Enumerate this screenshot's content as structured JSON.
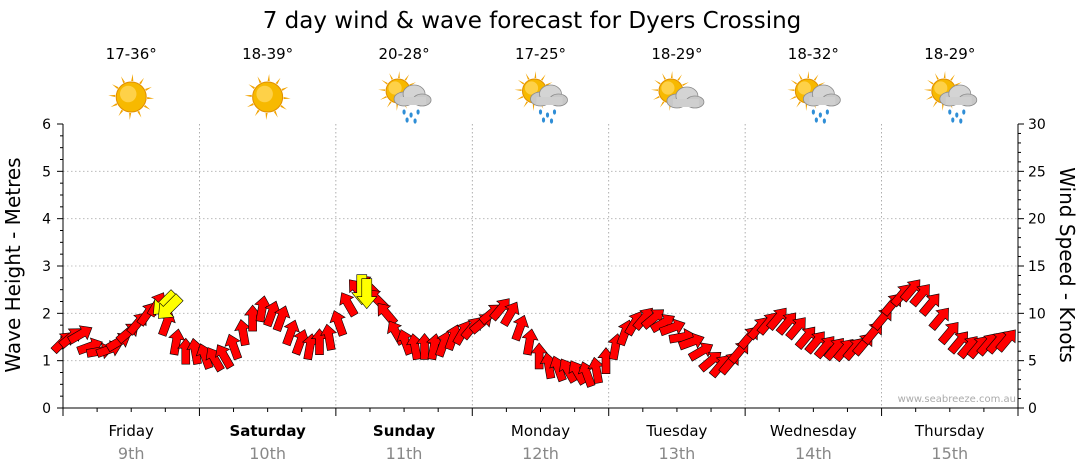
{
  "chart_data": {
    "type": "line",
    "title": "7 day wind & wave forecast for Dyers Crossing",
    "ylabel_left": "Wave Height - Metres",
    "ylabel_right": "Wind Speed - Knots",
    "ylim_left": [
      0,
      6
    ],
    "ylim_right": [
      0,
      30
    ],
    "yticks_left": [
      "0",
      "1",
      "2",
      "3",
      "4",
      "5",
      "6"
    ],
    "yticks_right": [
      "0",
      "5",
      "10",
      "15",
      "20",
      "25",
      "30"
    ],
    "grid": true,
    "credit": "www.seabreeze.com.au",
    "days": [
      {
        "name": "Friday",
        "date": "9th",
        "temp": "17-36°",
        "icon": "sunny-icon",
        "bold": false
      },
      {
        "name": "Saturday",
        "date": "10th",
        "temp": "18-39°",
        "icon": "sunny-icon",
        "bold": true
      },
      {
        "name": "Sunday",
        "date": "11th",
        "temp": "20-28°",
        "icon": "sun-rain-icon",
        "bold": true
      },
      {
        "name": "Monday",
        "date": "12th",
        "temp": "17-25°",
        "icon": "sun-rain-icon",
        "bold": false
      },
      {
        "name": "Tuesday",
        "date": "13th",
        "temp": "18-29°",
        "icon": "partly-cloudy-icon",
        "bold": false
      },
      {
        "name": "Wednesday",
        "date": "14th",
        "temp": "18-32°",
        "icon": "sun-rain-icon",
        "bold": false
      },
      {
        "name": "Thursday",
        "date": "15th",
        "temp": "18-29°",
        "icon": "sun-rain-icon",
        "bold": false
      }
    ],
    "series": [
      {
        "kind": "wind",
        "unit": "knots",
        "x_days": [
          0,
          0.06,
          0.13,
          0.2,
          0.27,
          0.34,
          0.41,
          0.48,
          0.55,
          0.62,
          0.69,
          0.76,
          0.83,
          0.9,
          0.97,
          1.04,
          1.11,
          1.18,
          1.25,
          1.32,
          1.39,
          1.46,
          1.53,
          1.6,
          1.67,
          1.74,
          1.81,
          1.88,
          1.95,
          2.02,
          2.09,
          2.16,
          2.23,
          2.3,
          2.37,
          2.44,
          2.51,
          2.58,
          2.65,
          2.72,
          2.79,
          2.86,
          2.93,
          3.0,
          3.07,
          3.14,
          3.21,
          3.28,
          3.35,
          3.42,
          3.49,
          3.56,
          3.63,
          3.7,
          3.77,
          3.84,
          3.91,
          3.98,
          4.05,
          4.12,
          4.19,
          4.26,
          4.33,
          4.4,
          4.47,
          4.54,
          4.61,
          4.68,
          4.75,
          4.82,
          4.89,
          4.96,
          5.03,
          5.1,
          5.17,
          5.24,
          5.31,
          5.38,
          5.45,
          5.52,
          5.59,
          5.66,
          5.73,
          5.8,
          5.87,
          5.94,
          6.01,
          6.08,
          6.15,
          6.22,
          6.29,
          6.36,
          6.43,
          6.5,
          6.57,
          6.64,
          6.71,
          6.78,
          6.85,
          6.92
        ],
        "values": [
          7,
          7.5,
          7.8,
          6.5,
          6,
          6.2,
          7,
          8,
          9,
          10,
          11,
          9,
          7,
          6,
          6,
          5.5,
          5.2,
          5.5,
          6.5,
          8,
          9.5,
          10.5,
          10,
          9.5,
          8,
          7,
          6.5,
          7,
          7.5,
          9,
          11,
          12.5,
          13,
          11.5,
          10,
          8,
          7,
          6.5,
          6.5,
          6.5,
          6.8,
          7.5,
          8,
          8.5,
          9,
          10,
          10.5,
          10,
          8.5,
          7,
          5.5,
          4.5,
          4.2,
          4,
          3.8,
          3.6,
          4,
          5,
          6.5,
          8,
          9,
          9.5,
          9.5,
          9,
          8.5,
          7.5,
          7,
          6,
          5,
          4.5,
          4.8,
          6,
          7.5,
          8.5,
          9,
          9.5,
          9,
          8.5,
          7.5,
          7,
          6.5,
          6.3,
          6.2,
          6.3,
          6.8,
          8,
          9.5,
          11,
          12,
          12.5,
          12,
          11,
          9.5,
          8,
          7,
          6.5,
          6.5,
          6.8,
          7,
          7.2
        ],
        "direction_deg": [
          225,
          230,
          240,
          250,
          260,
          250,
          240,
          230,
          220,
          215,
          210,
          200,
          190,
          180,
          170,
          160,
          150,
          150,
          160,
          170,
          180,
          190,
          200,
          200,
          200,
          200,
          190,
          180,
          170,
          160,
          150,
          140,
          135,
          135,
          140,
          150,
          160,
          170,
          180,
          190,
          200,
          200,
          210,
          220,
          230,
          230,
          220,
          210,
          200,
          190,
          180,
          170,
          160,
          150,
          150,
          160,
          170,
          180,
          190,
          200,
          210,
          220,
          230,
          240,
          250,
          260,
          250,
          240,
          230,
          220,
          220,
          220,
          220,
          220,
          220,
          220,
          220,
          220,
          220,
          220,
          220,
          220,
          220,
          220,
          220,
          220,
          220,
          220,
          220,
          220,
          220,
          220,
          220,
          220,
          220,
          220,
          220,
          220,
          220,
          220
        ]
      },
      {
        "kind": "wave",
        "unit": "metres",
        "points": [
          {
            "x_day": 0.74,
            "height": 2.2,
            "direction_deg": 45
          },
          {
            "x_day": 2.19,
            "height": 2.5,
            "direction_deg": 0
          }
        ]
      }
    ]
  }
}
